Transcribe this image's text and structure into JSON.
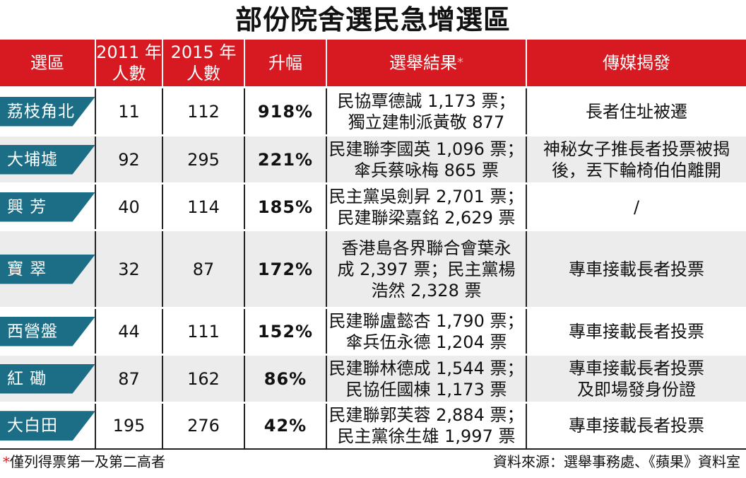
{
  "title": "部份院舍選民急增選區",
  "headers": {
    "district": "選區",
    "y2011_line1": "2011 年",
    "y2011_line2": "人數",
    "y2015_line1": "2015 年",
    "y2015_line2": "人數",
    "increase": "升幅",
    "result": "選舉結果",
    "result_mark": "*",
    "media": "傳媒揭發"
  },
  "rows": [
    {
      "district": "荔枝角北",
      "y2011": "11",
      "y2015": "112",
      "increase": "918%",
      "result": [
        "民協覃德誠 1,173 票；",
        "獨立建制派黃敬 877"
      ],
      "media": [
        "長者住址被遷"
      ]
    },
    {
      "district": "大埔墟",
      "y2011": "92",
      "y2015": "295",
      "increase": "221%",
      "result": [
        "民建聯李國英 1,096 票；",
        "傘兵蔡咏梅 865 票"
      ],
      "media": [
        "神秘女子推長者投票被揭",
        "後，丟下輪椅伯伯離開"
      ]
    },
    {
      "district": "興 芳",
      "y2011": "40",
      "y2015": "114",
      "increase": "185%",
      "result": [
        "民主黨吳劍昇 2,701 票；",
        "民建聯梁嘉銘 2,629 票"
      ],
      "media": [
        "/"
      ]
    },
    {
      "district": "寶 翠",
      "y2011": "32",
      "y2015": "87",
      "increase": "172%",
      "result": [
        "香港島各界聯合會葉永",
        "成 2,397 票；民主黨楊",
        "浩然 2,328 票"
      ],
      "media": [
        "專車接載長者投票"
      ]
    },
    {
      "district": "西營盤",
      "y2011": "44",
      "y2015": "111",
      "increase": "152%",
      "result": [
        "民建聯盧懿杏 1,790 票；",
        "傘兵伍永德 1,204 票"
      ],
      "media": [
        "專車接載長者投票"
      ]
    },
    {
      "district": "紅 磡",
      "y2011": "87",
      "y2015": "162",
      "increase": "86%",
      "result": [
        "民建聯林德成 1,544 票；",
        "民協任國棟 1,173 票"
      ],
      "media": [
        "專車接載長者投票",
        "及即場發身份證"
      ]
    },
    {
      "district": "大白田",
      "y2011": "195",
      "y2015": "276",
      "increase": "42%",
      "result": [
        "民建聯郭芙蓉 2,884 票；",
        "民主黨徐生雄 1,997 票"
      ],
      "media": [
        "專車接載長者投票"
      ]
    }
  ],
  "footnote": {
    "mark": "*",
    "text": "僅列得票第一及第二高者"
  },
  "source": "資料來源：選舉事務處、《蘋果》資料室",
  "colors": {
    "header_bg": "#d71a21",
    "tag_bg": "#1b6e86",
    "alt_row": "#ececec"
  }
}
